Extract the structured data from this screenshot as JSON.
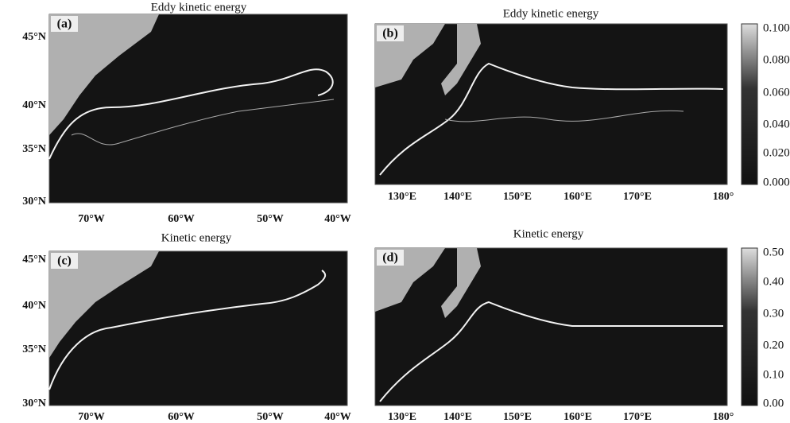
{
  "panels": [
    {
      "letter": "(a)",
      "title": "Eddy kinetic energy",
      "y_labels": [
        "45°N",
        "40°N",
        "35°N",
        "30°N"
      ],
      "x_labels": [
        "70°W",
        "60°W",
        "50°W",
        "40°W"
      ]
    },
    {
      "letter": "(b)",
      "title": "Eddy kinetic energy",
      "x_labels": [
        "130°E",
        "140°E",
        "150°E",
        "160°E",
        "170°E",
        "180°"
      ],
      "colorbar_labels": [
        "0.100",
        "0.080",
        "0.060",
        "0.040",
        "0.020",
        "0.000"
      ]
    },
    {
      "letter": "(c)",
      "title": "Kinetic energy",
      "y_labels": [
        "45°N",
        "40°N",
        "35°N",
        "30°N"
      ],
      "x_labels": [
        "70°W",
        "60°W",
        "50°W",
        "40°W"
      ]
    },
    {
      "letter": "(d)",
      "title": "Kinetic energy",
      "x_labels": [
        "130°E",
        "140°E",
        "150°E",
        "160°E",
        "170°E",
        "180°"
      ],
      "colorbar_labels": [
        "0.50",
        "0.40",
        "0.30",
        "0.20",
        "0.10",
        "0.00"
      ]
    }
  ]
}
